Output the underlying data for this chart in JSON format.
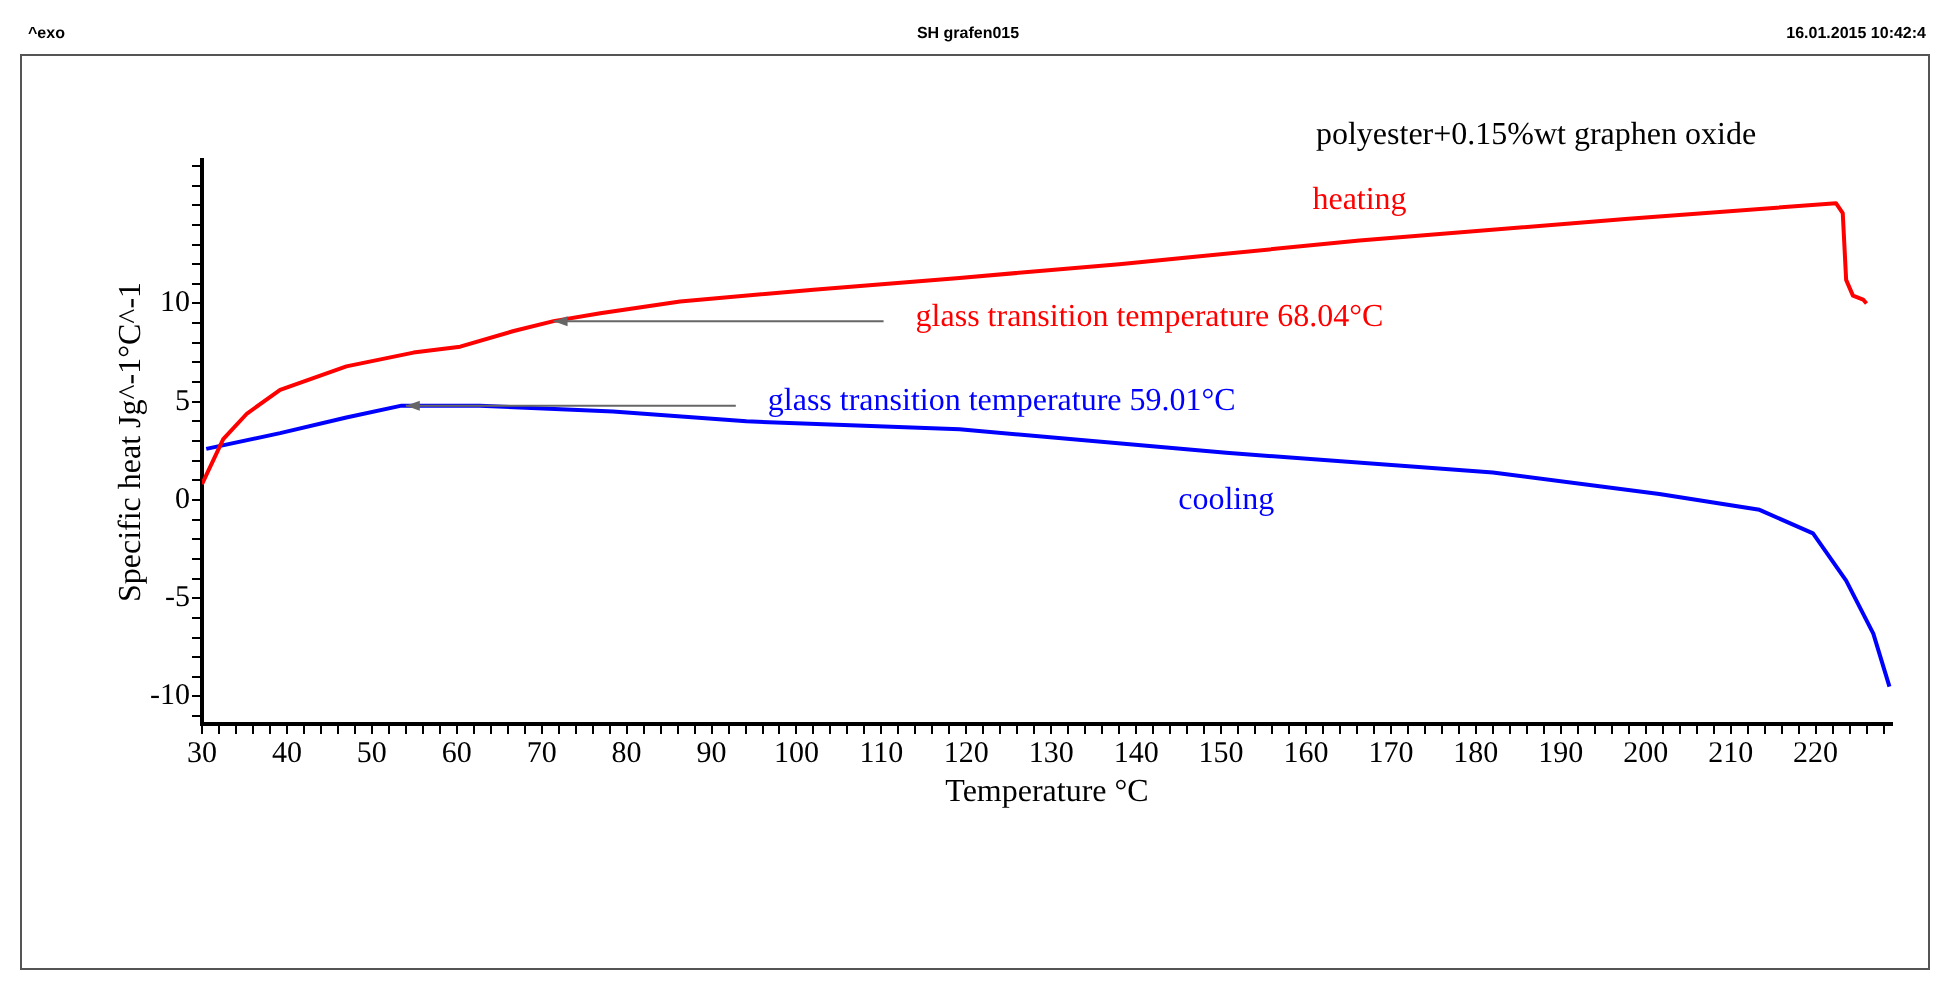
{
  "chart_data": {
    "type": "line",
    "title": "polyester+0.15%wt graphen oxide",
    "xlabel": "Temperature °C",
    "ylabel": "Specific heat Jg^-1°C^-1",
    "xlim": [
      30,
      229
    ],
    "ylim": [
      -11.4,
      17.3
    ],
    "xticks": [
      30,
      {
        "value": 32,
        "label": null
      },
      {
        "value": 34,
        "label": null
      },
      {
        "value": 36,
        "label": null
      },
      {
        "value": 38,
        "label": null
      },
      40,
      {
        "value": 42,
        "label": null
      },
      {
        "value": 44,
        "label": null
      },
      {
        "value": 46,
        "label": null
      },
      {
        "value": 48,
        "label": null
      },
      50,
      {
        "value": 52,
        "label": null
      },
      {
        "value": 54,
        "label": null
      },
      {
        "value": 56,
        "label": null
      },
      {
        "value": 58,
        "label": null
      },
      60,
      {
        "value": 62,
        "label": null
      },
      {
        "value": 64,
        "label": null
      },
      {
        "value": 66,
        "label": null
      },
      {
        "value": 68,
        "label": null
      },
      70,
      {
        "value": 72,
        "label": null
      },
      {
        "value": 74,
        "label": null
      },
      {
        "value": 76,
        "label": null
      },
      {
        "value": 78,
        "label": null
      },
      80,
      {
        "value": 82,
        "label": null
      },
      {
        "value": 84,
        "label": null
      },
      {
        "value": 86,
        "label": null
      },
      {
        "value": 88,
        "label": null
      },
      90,
      {
        "value": 92,
        "label": null
      },
      {
        "value": 94,
        "label": null
      },
      {
        "value": 96,
        "label": null
      },
      {
        "value": 98,
        "label": null
      },
      100,
      {
        "value": 102,
        "label": null
      },
      {
        "value": 104,
        "label": null
      },
      {
        "value": 106,
        "label": null
      },
      {
        "value": 108,
        "label": null
      },
      110,
      {
        "value": 112,
        "label": null
      },
      {
        "value": 114,
        "label": null
      },
      {
        "value": 116,
        "label": null
      },
      {
        "value": 118,
        "label": null
      },
      120,
      {
        "value": 122,
        "label": null
      },
      {
        "value": 124,
        "label": null
      },
      {
        "value": 126,
        "label": null
      },
      {
        "value": 128,
        "label": null
      },
      130,
      {
        "value": 132,
        "label": null
      },
      {
        "value": 134,
        "label": null
      },
      {
        "value": 136,
        "label": null
      },
      {
        "value": 138,
        "label": null
      },
      140,
      {
        "value": 142,
        "label": null
      },
      {
        "value": 144,
        "label": null
      },
      {
        "value": 146,
        "label": null
      },
      {
        "value": 148,
        "label": null
      },
      150,
      {
        "value": 152,
        "label": null
      },
      {
        "value": 154,
        "label": null
      },
      {
        "value": 156,
        "label": null
      },
      {
        "value": 158,
        "label": null
      },
      160,
      {
        "value": 162,
        "label": null
      },
      {
        "value": 164,
        "label": null
      },
      {
        "value": 166,
        "label": null
      },
      {
        "value": 168,
        "label": null
      },
      170,
      {
        "value": 172,
        "label": null
      },
      {
        "value": 174,
        "label": null
      },
      {
        "value": 176,
        "label": null
      },
      {
        "value": 178,
        "label": null
      },
      180,
      {
        "value": 182,
        "label": null
      },
      {
        "value": 184,
        "label": null
      },
      {
        "value": 186,
        "label": null
      },
      {
        "value": 188,
        "label": null
      },
      190,
      {
        "value": 192,
        "label": null
      },
      {
        "value": 194,
        "label": null
      },
      {
        "value": 196,
        "label": null
      },
      {
        "value": 198,
        "label": null
      },
      200,
      {
        "value": 202,
        "label": null
      },
      {
        "value": 204,
        "label": null
      },
      {
        "value": 206,
        "label": null
      },
      {
        "value": 208,
        "label": null
      },
      210,
      {
        "value": 212,
        "label": null
      },
      {
        "value": 214,
        "label": null
      },
      {
        "value": 216,
        "label": null
      },
      {
        "value": 218,
        "label": null
      },
      220,
      {
        "value": 222,
        "label": null
      },
      {
        "value": 224,
        "label": null
      },
      {
        "value": 226,
        "label": null
      },
      {
        "value": 228,
        "label": null
      }
    ],
    "yticks": [
      {
        "value": -11,
        "label": null
      },
      -10,
      {
        "value": -9,
        "label": null
      },
      {
        "value": -8,
        "label": null
      },
      {
        "value": -7,
        "label": null
      },
      {
        "value": -6,
        "label": null
      },
      -5,
      {
        "value": -4,
        "label": null
      },
      {
        "value": -3,
        "label": null
      },
      {
        "value": -2,
        "label": null
      },
      {
        "value": -1,
        "label": null
      },
      0,
      {
        "value": 1,
        "label": null
      },
      {
        "value": 2,
        "label": null
      },
      {
        "value": 3,
        "label": null
      },
      {
        "value": 4,
        "label": null
      },
      5,
      {
        "value": 6,
        "label": null
      },
      {
        "value": 7,
        "label": null
      },
      {
        "value": 8,
        "label": null
      },
      {
        "value": 9,
        "label": null
      },
      10,
      {
        "value": 11,
        "label": null
      },
      {
        "value": 12,
        "label": null
      },
      {
        "value": 13,
        "label": null
      },
      {
        "value": 14,
        "label": null
      },
      {
        "value": 15,
        "label": null
      },
      {
        "value": 16,
        "label": null
      },
      {
        "value": 17,
        "label": null
      }
    ],
    "grid": false,
    "legend": false,
    "marker": "none",
    "line_style": "solid",
    "series": [
      {
        "name": "heating",
        "color": "#ff0000",
        "x": [
          30,
          32.5,
          35.3,
          39.2,
          47,
          54.9,
          60.4,
          66.7,
          71.4,
          76.9,
          86.3,
          102,
          119.2,
          138,
          166.3,
          197.6,
          222.4,
          223.2,
          223.6,
          224.4,
          225.6,
          226
        ],
        "values": [
          0.8,
          3.1,
          4.4,
          5.6,
          6.8,
          7.5,
          7.8,
          8.6,
          9.1,
          9.5,
          10.1,
          10.7,
          11.3,
          12.0,
          13.2,
          14.3,
          15.1,
          14.6,
          11.2,
          10.4,
          10.2,
          10.0
        ]
      },
      {
        "name": "cooling",
        "color": "#0000ff",
        "x": [
          30.5,
          39.2,
          47,
          53.5,
          62.7,
          78.4,
          94.1,
          119.2,
          150.6,
          182,
          201.6,
          213.4,
          219.7,
          223.6,
          226.8,
          228.7
        ],
        "values": [
          2.6,
          3.4,
          4.2,
          4.8,
          4.8,
          4.5,
          4.0,
          3.6,
          2.4,
          1.4,
          0.3,
          -0.5,
          -1.7,
          -4.1,
          -6.8,
          -9.5
        ]
      }
    ],
    "annotations": [
      "^exo",
      "SH grafen015",
      "16.01.2015 10:42:4",
      {
        "text": "glass transition temperature 68.04°C",
        "x": 71.4,
        "y": 9.1
      },
      {
        "text": "glass transition temperature 59.01°C",
        "x": 54,
        "y": 4.8
      }
    ]
  }
}
